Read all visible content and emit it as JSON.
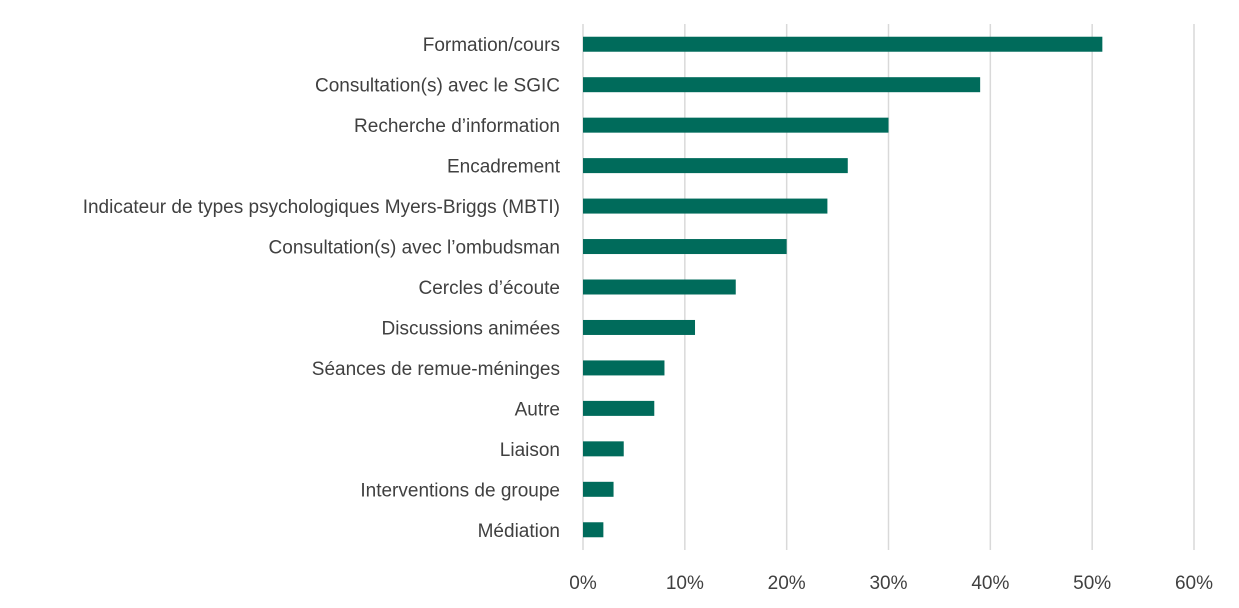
{
  "chart_data": {
    "type": "bar",
    "orientation": "horizontal",
    "categories": [
      "Formation/cours",
      "Consultation(s) avec le SGIC",
      "Recherche d’information",
      "Encadrement",
      "Indicateur de types psychologiques Myers-Briggs (MBTI)",
      "Consultation(s) avec l’ombudsman",
      "Cercles d’écoute",
      "Discussions animées",
      "Séances de remue-méninges",
      "Autre",
      "Liaison",
      "Interventions de groupe",
      "Médiation"
    ],
    "values": [
      51,
      39,
      30,
      26,
      24,
      20,
      15,
      11,
      8,
      7,
      4,
      3,
      2
    ],
    "unit": "%",
    "xlim": [
      0,
      60
    ],
    "xticks": [
      0,
      10,
      20,
      30,
      40,
      50,
      60
    ],
    "xtick_labels": [
      "0%",
      "10%",
      "20%",
      "30%",
      "40%",
      "50%",
      "60%"
    ],
    "title": "",
    "xlabel": "",
    "ylabel": "",
    "grid": "vertical",
    "legend": "none",
    "bar_color": "#006b5b"
  }
}
